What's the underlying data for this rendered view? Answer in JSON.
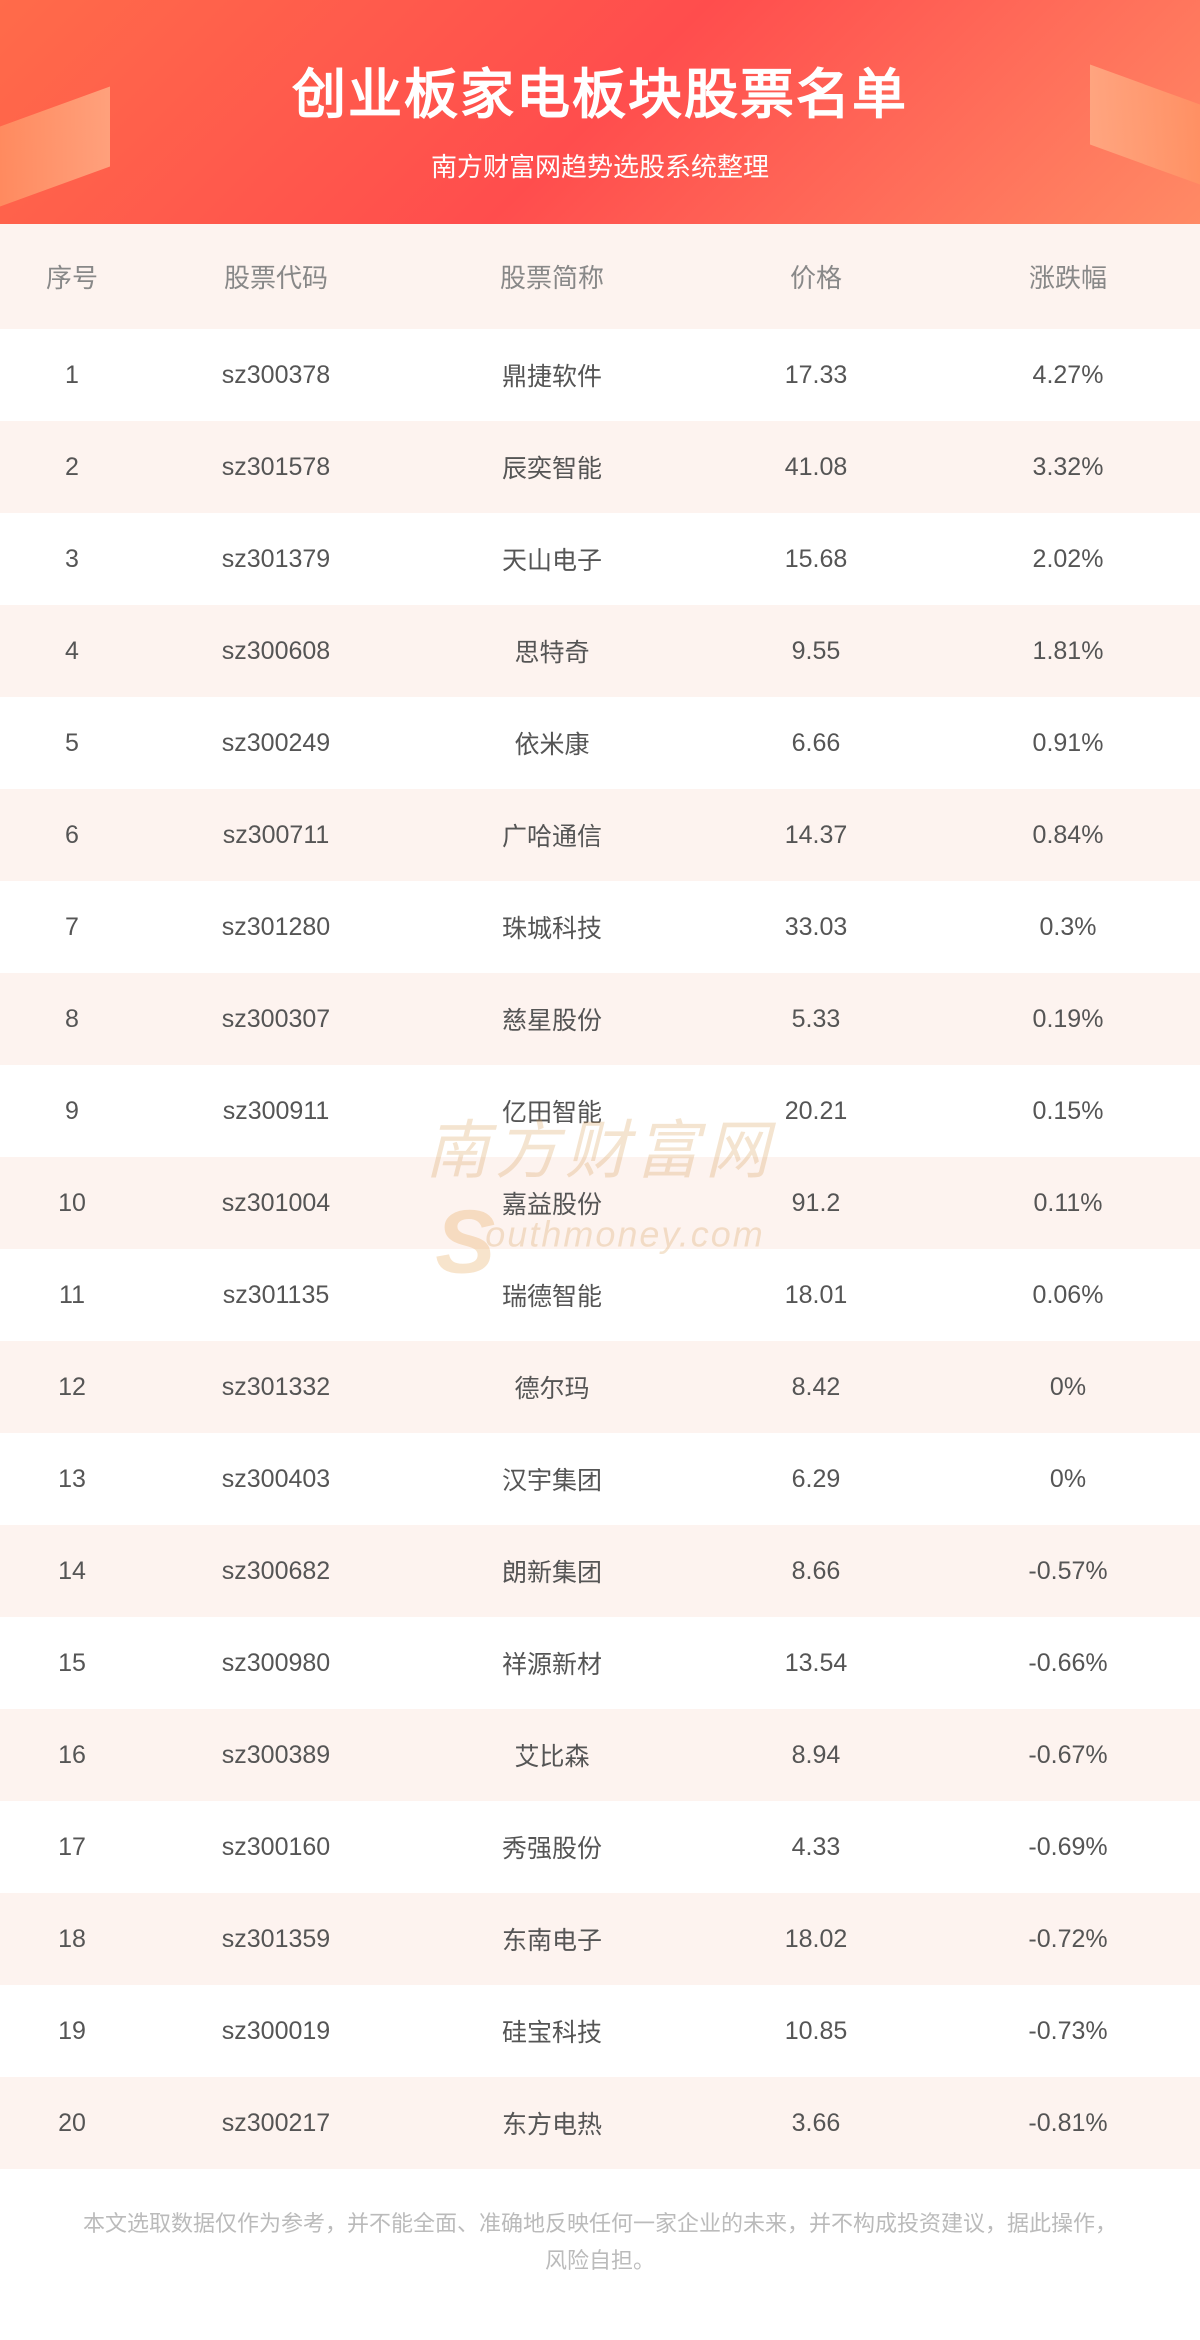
{
  "header": {
    "title": "创业板家电板块股票名单",
    "subtitle": "南方财富网趋势选股系统整理",
    "bg_gradient": [
      "#ff6b4a",
      "#ff4d4d",
      "#ff8a65"
    ],
    "accent_shape_color": "#ff8c5a"
  },
  "table": {
    "columns": [
      "序号",
      "股票代码",
      "股票简称",
      "价格",
      "涨跌幅"
    ],
    "column_widths_pct": [
      12,
      22,
      24,
      20,
      22
    ],
    "header_bg": "#fdf3ef",
    "header_text_color": "#888888",
    "row_odd_bg": "#ffffff",
    "row_even_bg": "#fdf3ef",
    "cell_text_color": "#555555",
    "header_fontsize": 26,
    "cell_fontsize": 25,
    "rows": [
      {
        "index": "1",
        "code": "sz300378",
        "name": "鼎捷软件",
        "price": "17.33",
        "change": "4.27%"
      },
      {
        "index": "2",
        "code": "sz301578",
        "name": "辰奕智能",
        "price": "41.08",
        "change": "3.32%"
      },
      {
        "index": "3",
        "code": "sz301379",
        "name": "天山电子",
        "price": "15.68",
        "change": "2.02%"
      },
      {
        "index": "4",
        "code": "sz300608",
        "name": "思特奇",
        "price": "9.55",
        "change": "1.81%"
      },
      {
        "index": "5",
        "code": "sz300249",
        "name": "依米康",
        "price": "6.66",
        "change": "0.91%"
      },
      {
        "index": "6",
        "code": "sz300711",
        "name": "广哈通信",
        "price": "14.37",
        "change": "0.84%"
      },
      {
        "index": "7",
        "code": "sz301280",
        "name": "珠城科技",
        "price": "33.03",
        "change": "0.3%"
      },
      {
        "index": "8",
        "code": "sz300307",
        "name": "慈星股份",
        "price": "5.33",
        "change": "0.19%"
      },
      {
        "index": "9",
        "code": "sz300911",
        "name": "亿田智能",
        "price": "20.21",
        "change": "0.15%"
      },
      {
        "index": "10",
        "code": "sz301004",
        "name": "嘉益股份",
        "price": "91.2",
        "change": "0.11%"
      },
      {
        "index": "11",
        "code": "sz301135",
        "name": "瑞德智能",
        "price": "18.01",
        "change": "0.06%"
      },
      {
        "index": "12",
        "code": "sz301332",
        "name": "德尔玛",
        "price": "8.42",
        "change": "0%"
      },
      {
        "index": "13",
        "code": "sz300403",
        "name": "汉宇集团",
        "price": "6.29",
        "change": "0%"
      },
      {
        "index": "14",
        "code": "sz300682",
        "name": "朗新集团",
        "price": "8.66",
        "change": "-0.57%"
      },
      {
        "index": "15",
        "code": "sz300980",
        "name": "祥源新材",
        "price": "13.54",
        "change": "-0.66%"
      },
      {
        "index": "16",
        "code": "sz300389",
        "name": "艾比森",
        "price": "8.94",
        "change": "-0.67%"
      },
      {
        "index": "17",
        "code": "sz300160",
        "name": "秀强股份",
        "price": "4.33",
        "change": "-0.69%"
      },
      {
        "index": "18",
        "code": "sz301359",
        "name": "东南电子",
        "price": "18.02",
        "change": "-0.72%"
      },
      {
        "index": "19",
        "code": "sz300019",
        "name": "硅宝科技",
        "price": "10.85",
        "change": "-0.73%"
      },
      {
        "index": "20",
        "code": "sz300217",
        "name": "东方电热",
        "price": "3.66",
        "change": "-0.81%"
      }
    ]
  },
  "watermark": {
    "cn": "南方财富网",
    "en": "outhmoney.com",
    "s": "S",
    "color": "#d9a05a"
  },
  "disclaimer": "本文选取数据仅作为参考，并不能全面、准确地反映任何一家企业的未来，并不构成投资建议，据此操作，风险自担。"
}
